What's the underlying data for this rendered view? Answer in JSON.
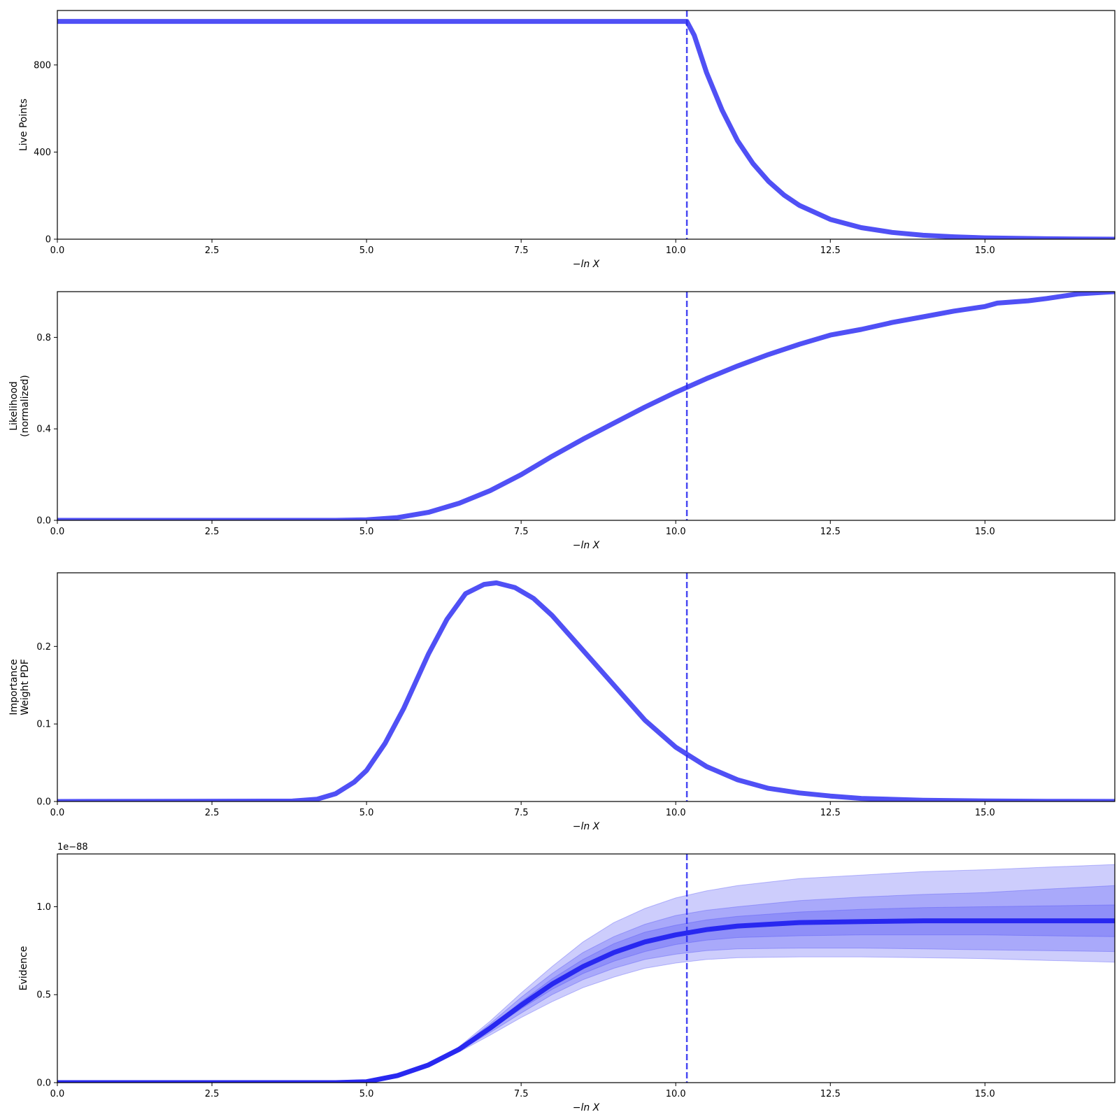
{
  "figure": {
    "description_shown": ""
  },
  "chart_data": [
    {
      "type": "line",
      "title": "",
      "xlabel": "−ln X",
      "ylabel": [
        "Live Points"
      ],
      "xlim": [
        0,
        17.1
      ],
      "ylim": [
        0,
        1050
      ],
      "xticks": [
        "0.0",
        "2.5",
        "5.0",
        "7.5",
        "10.0",
        "12.5",
        "15.0"
      ],
      "xtick_values": [
        0,
        2.5,
        5,
        7.5,
        10,
        12.5,
        15
      ],
      "yticks": [
        "0",
        "400",
        "800"
      ],
      "ytick_values": [
        0,
        400,
        800
      ],
      "vline_x": 10.18,
      "color": "#5050f5",
      "series": [
        {
          "x": [
            0,
            10.18,
            10.3,
            10.5,
            10.75,
            11.0,
            11.25,
            11.5,
            11.75,
            12.0,
            12.5,
            13.0,
            13.5,
            14.0,
            14.5,
            15.0,
            15.5,
            16.0,
            16.5,
            17.1
          ],
          "y": [
            1000,
            1000,
            936,
            764,
            592,
            452,
            347,
            266,
            203,
            155,
            91,
            53,
            31,
            18,
            11,
            6,
            4,
            2,
            1,
            0
          ]
        }
      ]
    },
    {
      "type": "line",
      "title": "",
      "xlabel": "−ln X",
      "ylabel": [
        "Likelihood",
        "(normalized)"
      ],
      "xlim": [
        0,
        17.1
      ],
      "ylim": [
        0,
        1.0
      ],
      "xticks": [
        "0.0",
        "2.5",
        "5.0",
        "7.5",
        "10.0",
        "12.5",
        "15.0"
      ],
      "xtick_values": [
        0,
        2.5,
        5,
        7.5,
        10,
        12.5,
        15
      ],
      "yticks": [
        "0.0",
        "0.4",
        "0.8"
      ],
      "ytick_values": [
        0,
        0.4,
        0.8
      ],
      "vline_x": 10.18,
      "color": "#5050f5",
      "series": [
        {
          "x": [
            0,
            4.5,
            5.0,
            5.5,
            6.0,
            6.5,
            7.0,
            7.5,
            8.0,
            8.5,
            9.0,
            9.5,
            10.0,
            10.5,
            11.0,
            11.5,
            12.0,
            12.5,
            13.0,
            13.5,
            14.0,
            14.5,
            15.0,
            15.2,
            15.7,
            16.0,
            16.5,
            17.1
          ],
          "y": [
            0,
            0,
            0.002,
            0.012,
            0.035,
            0.075,
            0.13,
            0.2,
            0.28,
            0.355,
            0.425,
            0.495,
            0.56,
            0.62,
            0.675,
            0.725,
            0.77,
            0.81,
            0.835,
            0.865,
            0.89,
            0.915,
            0.935,
            0.95,
            0.96,
            0.97,
            0.99,
            1.0
          ]
        }
      ]
    },
    {
      "type": "line",
      "title": "",
      "xlabel": "−ln X",
      "ylabel": [
        "Importance",
        "Weight PDF"
      ],
      "xlim": [
        0,
        17.1
      ],
      "ylim": [
        0,
        0.295
      ],
      "xticks": [
        "0.0",
        "2.5",
        "5.0",
        "7.5",
        "10.0",
        "12.5",
        "15.0"
      ],
      "xtick_values": [
        0,
        2.5,
        5,
        7.5,
        10,
        12.5,
        15
      ],
      "yticks": [
        "0.0",
        "0.1",
        "0.2"
      ],
      "ytick_values": [
        0,
        0.1,
        0.2
      ],
      "vline_x": 10.18,
      "color": "#5050f5",
      "series": [
        {
          "x": [
            0,
            3.8,
            4.2,
            4.5,
            4.8,
            5.0,
            5.3,
            5.6,
            6.0,
            6.3,
            6.6,
            6.9,
            7.1,
            7.4,
            7.7,
            8.0,
            8.5,
            9.0,
            9.5,
            10.0,
            10.5,
            11.0,
            11.5,
            12.0,
            12.5,
            13.0,
            14.0,
            15.0,
            16.0,
            17.1
          ],
          "y": [
            0,
            0.0005,
            0.003,
            0.01,
            0.025,
            0.04,
            0.075,
            0.12,
            0.19,
            0.235,
            0.268,
            0.28,
            0.282,
            0.276,
            0.262,
            0.24,
            0.195,
            0.15,
            0.105,
            0.07,
            0.045,
            0.028,
            0.017,
            0.011,
            0.007,
            0.004,
            0.0015,
            0.0007,
            0.0003,
            0.0001
          ]
        }
      ]
    },
    {
      "type": "area",
      "title": "",
      "xlabel": "−ln X",
      "ylabel": [
        "Evidence"
      ],
      "offset_text": "1e−88",
      "xlim": [
        0,
        17.1
      ],
      "ylim": [
        0,
        1.3
      ],
      "xticks": [
        "0.0",
        "2.5",
        "5.0",
        "7.5",
        "10.0",
        "12.5",
        "15.0"
      ],
      "xtick_values": [
        0,
        2.5,
        5,
        7.5,
        10,
        12.5,
        15
      ],
      "yticks": [
        "0.0",
        "0.5",
        "1.0"
      ],
      "ytick_values": [
        0,
        0.5,
        1.0
      ],
      "vline_x": 10.18,
      "color": "#2828f0",
      "band_color": "#4b4bf5",
      "x": [
        0,
        4.5,
        5.0,
        5.5,
        6.0,
        6.5,
        7.0,
        7.5,
        8.0,
        8.5,
        9.0,
        9.5,
        10.0,
        10.5,
        11.0,
        12.0,
        13.0,
        14.0,
        15.0,
        16.0,
        17.1
      ],
      "series": [
        {
          "name": "",
          "role": "median",
          "values": [
            0,
            0,
            0.005,
            0.04,
            0.1,
            0.19,
            0.31,
            0.44,
            0.56,
            0.66,
            0.74,
            0.8,
            0.84,
            0.87,
            0.89,
            0.91,
            0.915,
            0.92,
            0.92,
            0.92,
            0.92
          ]
        }
      ],
      "bands": [
        {
          "level": 3,
          "lower": [
            0,
            0,
            0.005,
            0.04,
            0.095,
            0.175,
            0.27,
            0.37,
            0.46,
            0.54,
            0.6,
            0.65,
            0.68,
            0.7,
            0.71,
            0.715,
            0.715,
            0.71,
            0.705,
            0.695,
            0.685
          ],
          "upper": [
            0,
            0,
            0.005,
            0.04,
            0.105,
            0.205,
            0.35,
            0.51,
            0.66,
            0.8,
            0.91,
            0.99,
            1.05,
            1.09,
            1.12,
            1.16,
            1.18,
            1.2,
            1.21,
            1.225,
            1.24
          ]
        },
        {
          "level": 2,
          "lower": [
            0,
            0,
            0.005,
            0.04,
            0.097,
            0.18,
            0.285,
            0.395,
            0.5,
            0.585,
            0.65,
            0.7,
            0.73,
            0.75,
            0.76,
            0.765,
            0.765,
            0.76,
            0.755,
            0.75,
            0.745
          ],
          "upper": [
            0,
            0,
            0.005,
            0.04,
            0.103,
            0.2,
            0.335,
            0.485,
            0.62,
            0.74,
            0.83,
            0.9,
            0.95,
            0.98,
            1.0,
            1.035,
            1.055,
            1.07,
            1.08,
            1.1,
            1.12
          ]
        },
        {
          "level": 1,
          "lower": [
            0,
            0,
            0.005,
            0.04,
            0.099,
            0.185,
            0.3,
            0.42,
            0.53,
            0.62,
            0.69,
            0.745,
            0.785,
            0.81,
            0.825,
            0.835,
            0.84,
            0.84,
            0.84,
            0.835,
            0.83
          ],
          "upper": [
            0,
            0,
            0.005,
            0.04,
            0.101,
            0.195,
            0.32,
            0.46,
            0.59,
            0.7,
            0.79,
            0.855,
            0.895,
            0.925,
            0.945,
            0.97,
            0.985,
            0.995,
            1.0,
            1.005,
            1.01
          ]
        }
      ]
    }
  ]
}
